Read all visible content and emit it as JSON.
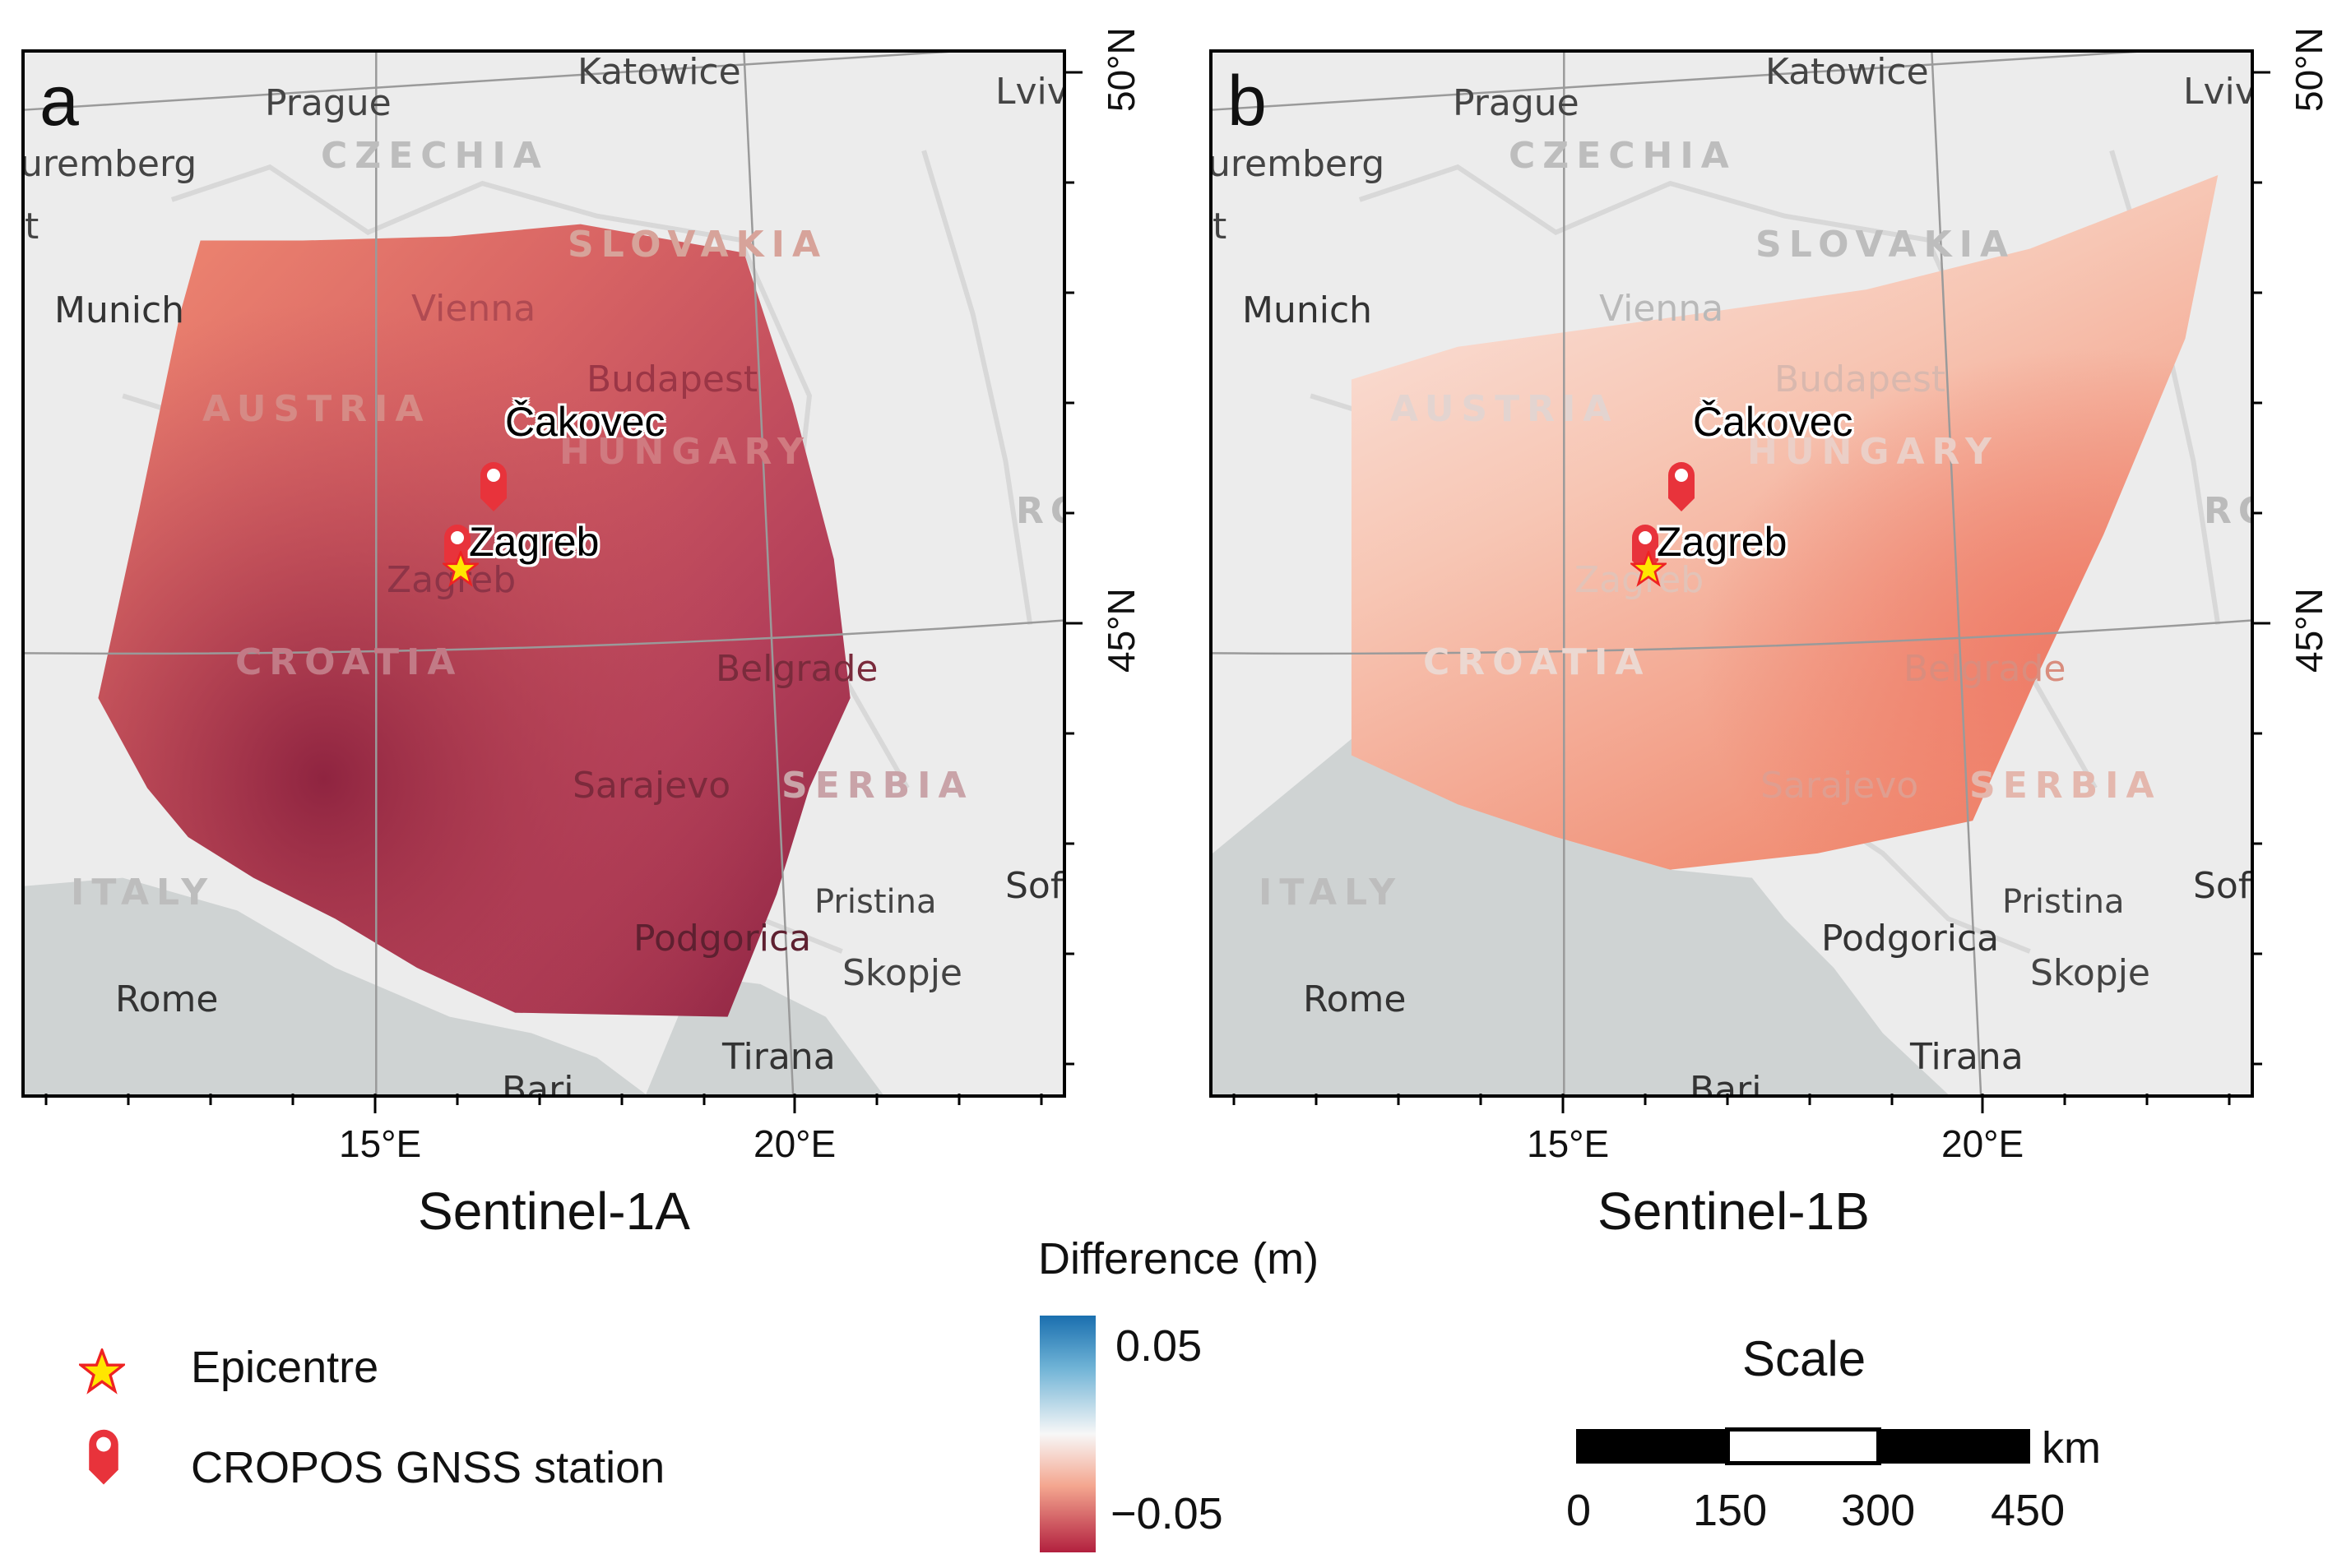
{
  "panels": [
    {
      "letter": "a",
      "sensor": "Sentinel-1A",
      "lon_ticks": [
        "15°E",
        "20°E"
      ],
      "lat_ticks": [
        "50°N",
        "45°N"
      ]
    },
    {
      "letter": "b",
      "sensor": "Sentinel-1B",
      "lon_ticks": [
        "15°E",
        "20°E"
      ],
      "lat_ticks": [
        "50°N",
        "45°N"
      ]
    }
  ],
  "basemap": {
    "cities": [
      "Katowice",
      "Prague",
      "Lviv",
      "uremberg",
      "t",
      "Munich",
      "Vienna",
      "Budapest",
      "Zagreb",
      "Belgrade",
      "Sarajevo",
      "Pristina",
      "Sofi",
      "Podgorica",
      "Skopje",
      "Rome",
      "Tirana",
      "Bari",
      "RO"
    ],
    "countries": [
      "CZECHIA",
      "SLOVAKIA",
      "AUSTRIA",
      "HUNGARY",
      "CROATIA",
      "SERBIA",
      "ITALY"
    ]
  },
  "stations": [
    {
      "name": "Čakovec"
    },
    {
      "name": "Zagreb"
    }
  ],
  "colorbar": {
    "title": "Difference (m)",
    "max_label": "0.05",
    "min_label": "−0.05",
    "range": [
      -0.05,
      0.05
    ],
    "high_color": "#1a6faf",
    "mid_color": "#f7f7f7",
    "low_color": "#b2203f"
  },
  "legend": {
    "epicentre": "Epicentre",
    "station": "CROPOS GNSS station"
  },
  "scalebar": {
    "title": "Scale",
    "unit": "km",
    "ticks": [
      "0",
      "150",
      "300",
      "450"
    ]
  }
}
